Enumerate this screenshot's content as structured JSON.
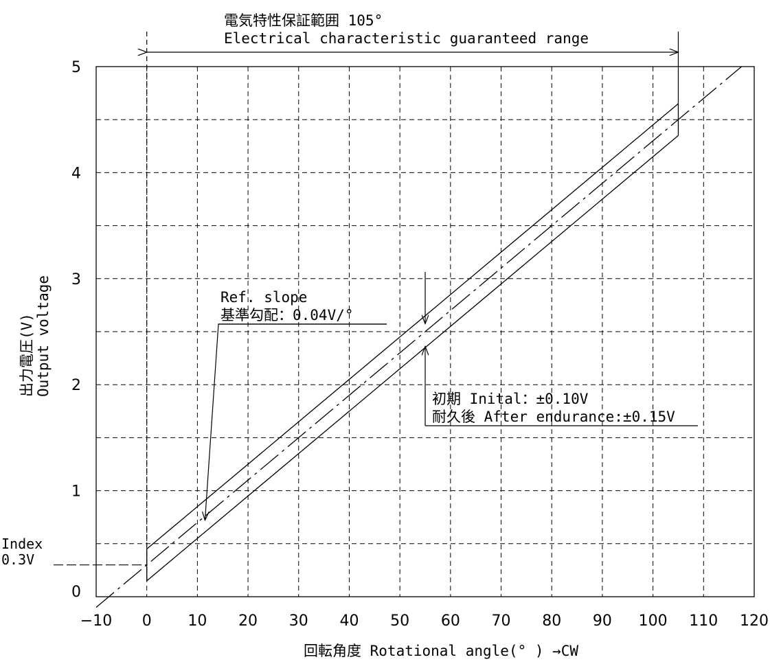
{
  "chart_data": {
    "type": "line",
    "xlabel": "回転角度 Rotational angle(° ) →CW",
    "ylabel_jp": "出力電圧(V)",
    "ylabel_en": "Output voltage",
    "xlim": [
      -10,
      120
    ],
    "ylim": [
      0,
      5
    ],
    "x_ticks": [
      "−10",
      "0",
      "10",
      "20",
      "30",
      "40",
      "50",
      "60",
      "70",
      "80",
      "90",
      "100",
      "110",
      "120"
    ],
    "y_ticks": [
      "0",
      "1",
      "2",
      "3",
      "4",
      "5"
    ],
    "grid": true,
    "range_title_jp": "電気特性保証範囲 105°",
    "range_title_en": "Electrical characteristic guaranteed range",
    "range": [
      0,
      105
    ],
    "index_label": "Index",
    "index_value_label": "0.3V",
    "index_value": 0.3,
    "slope_label_en": "Ref. slope",
    "slope_label_jp": "基準勾配：0.04V/°",
    "slope": 0.04,
    "tolerance_initial_label": "初期 Inital：±0.10V",
    "tolerance_endurance_label": "耐久後 After endurance:±0.15V",
    "tolerance_initial": 0.1,
    "tolerance_endurance": 0.15,
    "series": [
      {
        "role": "reference",
        "x": [
          -10,
          117.5
        ],
        "y": [
          -0.1,
          5.0
        ]
      },
      {
        "role": "upper",
        "x": [
          0,
          105
        ],
        "y": [
          0.45,
          4.65
        ]
      },
      {
        "role": "lower",
        "x": [
          0,
          105
        ],
        "y": [
          0.15,
          4.35
        ]
      }
    ]
  }
}
